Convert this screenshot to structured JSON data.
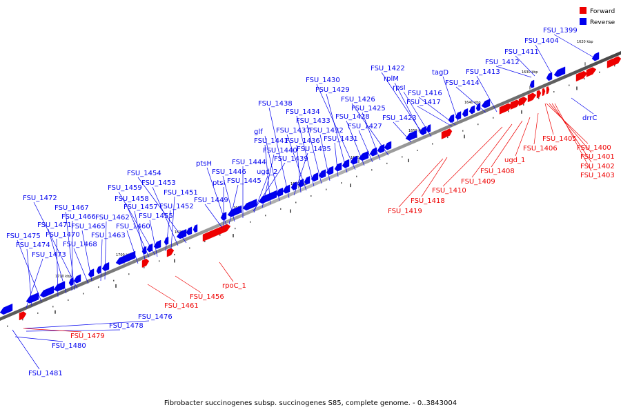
{
  "caption": "Fibrobacter succinogenes subsp. succinogenes S85, complete genome. - 0..3843004",
  "legend": [
    {
      "label": "Forward",
      "color": "#ee0000"
    },
    {
      "label": "Reverse",
      "color": "#0000ee"
    }
  ],
  "colors": {
    "forward": "#ee0000",
    "reverse": "#0000ee",
    "backbone": "#666666"
  },
  "ticks": [
    "1620 kbp",
    "1630 kbp",
    "1640 kbp",
    "1650 kbp",
    "1660 kbp",
    "1670 kbp",
    "1680 kbp",
    "1690 kbp",
    "1700 kbp",
    "1710 kbp"
  ],
  "labels_reverse": [
    "FSU_1399",
    "FSU_1404",
    "FSU_1411",
    "FSU_1412",
    "FSU_1413",
    "FSU_1414",
    "tagD",
    "FSU_1416",
    "FSU_1417",
    "FSU_1422",
    "rplM",
    "rpsI",
    "FSU_1423",
    "FSU_1426",
    "FSU_1425",
    "FSU_1427",
    "FSU_1428",
    "FSU_1430",
    "FSU_1429",
    "FSU_1431",
    "FSU_1432",
    "FSU_1433",
    "FSU_1434",
    "FSU_1437",
    "FSU_1436",
    "FSU_1435",
    "FSU_1438",
    "glf",
    "FSU_1441",
    "FSU_1440",
    "FSU_1439",
    "ugd_2",
    "FSU_1444",
    "FSU_1446",
    "FSU_1445",
    "ptsH",
    "ptsI",
    "FSU_1449",
    "FSU_1454",
    "FSU_1453",
    "FSU_1451",
    "FSU_1452",
    "FSU_1459",
    "FSU_1458",
    "FSU_1457",
    "FSU_1455",
    "FSU_1460",
    "FSU_1462",
    "FSU_1463",
    "FSU_1472",
    "FSU_1467",
    "FSU_1466",
    "FSU_1465",
    "FSU_1471",
    "FSU_1470",
    "FSU_1468",
    "FSU_1475",
    "FSU_1474",
    "FSU_1473",
    "FSU_1476",
    "FSU_1478",
    "FSU_1480",
    "FSU_1481",
    "drrC"
  ],
  "labels_forward": [
    "FSU_1405",
    "FSU_1400",
    "FSU_1401",
    "FSU_1402",
    "FSU_1403",
    "FSU_1406",
    "ugd_1",
    "FSU_1408",
    "FSU_1409",
    "FSU_1410",
    "FSU_1418",
    "FSU_1419",
    "rpoC_1",
    "FSU_1456",
    "FSU_1461",
    "FSU_1479"
  ]
}
